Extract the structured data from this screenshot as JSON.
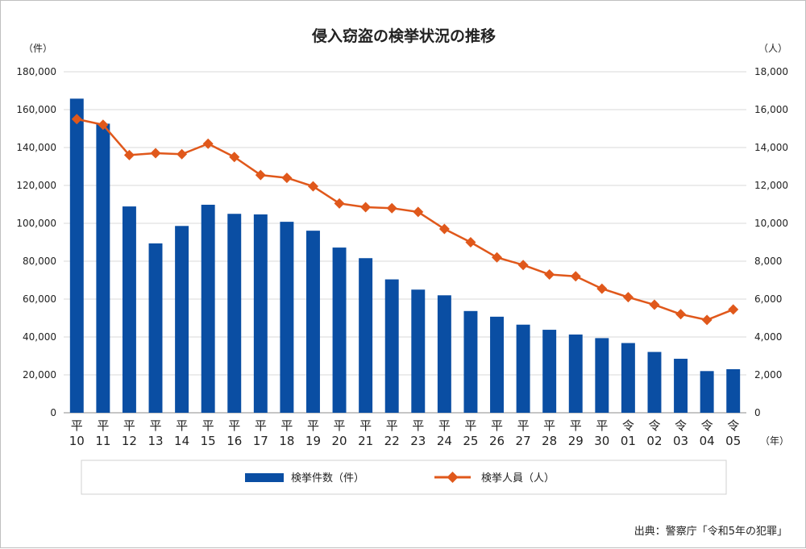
{
  "chart_data": {
    "type": "bar",
    "title": "侵入窃盗の検挙状況の推移",
    "source": "出典：警察庁「令和5年の犯罪」",
    "y_left_unit": "（件）",
    "y_right_unit": "（人）",
    "x_unit": "（年）",
    "categories": [
      [
        "平",
        "10"
      ],
      [
        "平",
        "11"
      ],
      [
        "平",
        "12"
      ],
      [
        "平",
        "13"
      ],
      [
        "平",
        "14"
      ],
      [
        "平",
        "15"
      ],
      [
        "平",
        "16"
      ],
      [
        "平",
        "17"
      ],
      [
        "平",
        "18"
      ],
      [
        "平",
        "19"
      ],
      [
        "平",
        "20"
      ],
      [
        "平",
        "21"
      ],
      [
        "平",
        "22"
      ],
      [
        "平",
        "23"
      ],
      [
        "平",
        "24"
      ],
      [
        "平",
        "25"
      ],
      [
        "平",
        "26"
      ],
      [
        "平",
        "27"
      ],
      [
        "平",
        "28"
      ],
      [
        "平",
        "29"
      ],
      [
        "平",
        "30"
      ],
      [
        "令",
        "01"
      ],
      [
        "令",
        "02"
      ],
      [
        "令",
        "03"
      ],
      [
        "令",
        "04"
      ],
      [
        "令",
        "05"
      ]
    ],
    "y_left": {
      "min": 0,
      "max": 180000,
      "step": 20000,
      "tick_labels": [
        "0",
        "20,000",
        "40,000",
        "60,000",
        "80,000",
        "100,000",
        "120,000",
        "140,000",
        "160,000",
        "180,000"
      ]
    },
    "y_right": {
      "min": 0,
      "max": 18000,
      "step": 2000,
      "tick_labels": [
        "0",
        "2,000",
        "4,000",
        "6,000",
        "8,000",
        "10,000",
        "12,000",
        "14,000",
        "16,000",
        "18,000"
      ]
    },
    "grid": true,
    "legend_position": "bottom",
    "series": [
      {
        "name": "検挙件数（件）",
        "type": "bar",
        "axis": "left",
        "color": "#0a4ea3",
        "values": [
          165800,
          152600,
          108900,
          89400,
          98600,
          109800,
          105000,
          104700,
          100800,
          96100,
          87200,
          81600,
          70400,
          65000,
          62000,
          53700,
          50700,
          46500,
          43800,
          41300,
          39400,
          36800,
          32100,
          28500,
          22000,
          23000
        ]
      },
      {
        "name": "検挙人員（人）",
        "type": "line",
        "axis": "right",
        "color": "#e0581b",
        "marker": "diamond",
        "values": [
          15500,
          15200,
          13600,
          13700,
          13650,
          14200,
          13500,
          12550,
          12400,
          11950,
          11050,
          10850,
          10800,
          10600,
          9700,
          9000,
          8200,
          7800,
          7300,
          7200,
          6550,
          6100,
          5700,
          5200,
          4900,
          5450
        ]
      }
    ]
  }
}
